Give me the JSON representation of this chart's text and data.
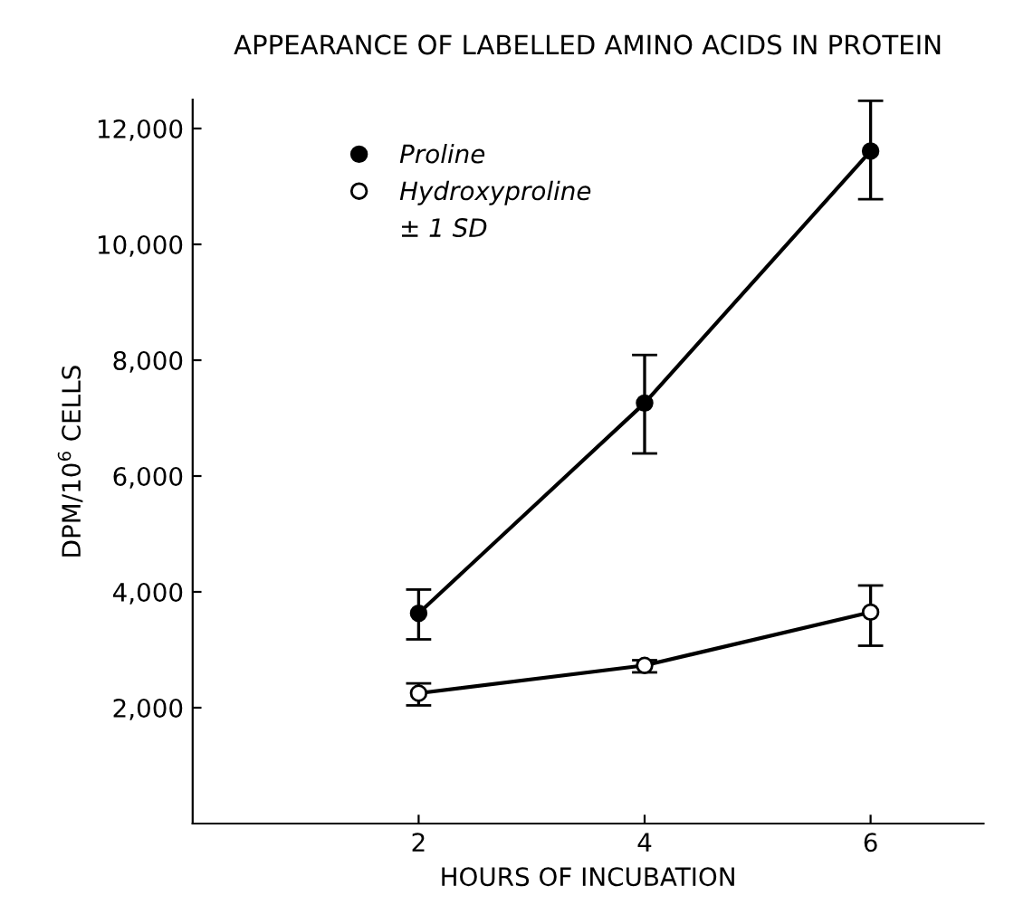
{
  "chart_data": {
    "type": "line",
    "title": "APPEARANCE OF LABELLED AMINO ACIDS IN PROTEIN",
    "xlabel": "HOURS OF INCUBATION",
    "ylabel": "DPM/10$^{6}$ CELLS",
    "x": [
      2,
      4,
      6
    ],
    "series": [
      {
        "name": "Proline",
        "color": "#000000",
        "values": [
          3630,
          7260,
          11610
        ],
        "errors": [
          [
            3180,
            4040
          ],
          [
            6390,
            8090
          ],
          [
            10780,
            12480
          ]
        ],
        "marker": "circle"
      },
      {
        "name": "Hydroxyproline",
        "color": "#000000",
        "values": [
          2250,
          2730,
          3650
        ],
        "errors": [
          [
            2040,
            2420
          ],
          [
            2610,
            2820
          ],
          [
            3070,
            4110
          ]
        ],
        "marker": "circle"
      }
    ],
    "annotations": [
      "± 1 SD"
    ],
    "xlim": [
      0,
      7
    ],
    "xticks": [
      2,
      4,
      6
    ],
    "ylim": [
      0,
      12500
    ],
    "yticks": [
      {
        "value": 2000,
        "label": "2,000"
      },
      {
        "value": 4000,
        "label": "4,000"
      },
      {
        "value": 6000,
        "label": "6,000"
      },
      {
        "value": 8000,
        "label": "8,000"
      },
      {
        "value": 10000,
        "label": "10,000"
      },
      {
        "value": 12000,
        "label": "12,000"
      }
    ],
    "legend": "top left",
    "grid": false,
    "line_style": "solid"
  }
}
